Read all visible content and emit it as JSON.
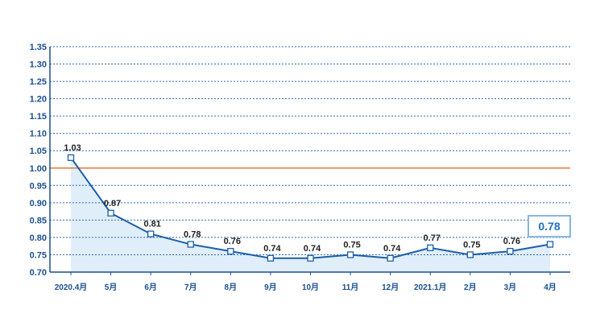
{
  "chart_data": {
    "type": "line",
    "title": "",
    "xlabel": "",
    "ylabel": "",
    "categories": [
      "2020.4月",
      "5月",
      "6月",
      "7月",
      "8月",
      "9月",
      "10月",
      "11月",
      "12月",
      "2021.1月",
      "2月",
      "3月",
      "4月"
    ],
    "values": [
      1.03,
      0.87,
      0.81,
      0.78,
      0.76,
      0.74,
      0.74,
      0.75,
      0.74,
      0.77,
      0.75,
      0.76,
      0.78
    ],
    "data_labels": [
      "1.03",
      "0.87",
      "0.81",
      "0.78",
      "0.76",
      "0.74",
      "0.74",
      "0.75",
      "0.74",
      "0.77",
      "0.75",
      "0.76",
      ""
    ],
    "ylim": [
      0.7,
      1.35
    ],
    "yticks": [
      "1.35",
      "1.30",
      "1.25",
      "1.20",
      "1.15",
      "1.10",
      "1.05",
      "1.00",
      "0.95",
      "0.90",
      "0.85",
      "0.80",
      "0.75",
      "0.70"
    ],
    "reference_line": 1.0,
    "callout": "0.78",
    "grid": "dotted-horizontal",
    "colors": {
      "line": "#1a5ea8",
      "marker_fill": "#ffffff",
      "grid": "#2e6cb5",
      "reference": "#e07b39",
      "axis": "#1a4f8f",
      "area": "#d6e8f7",
      "callout_border": "#8ab4de"
    }
  }
}
